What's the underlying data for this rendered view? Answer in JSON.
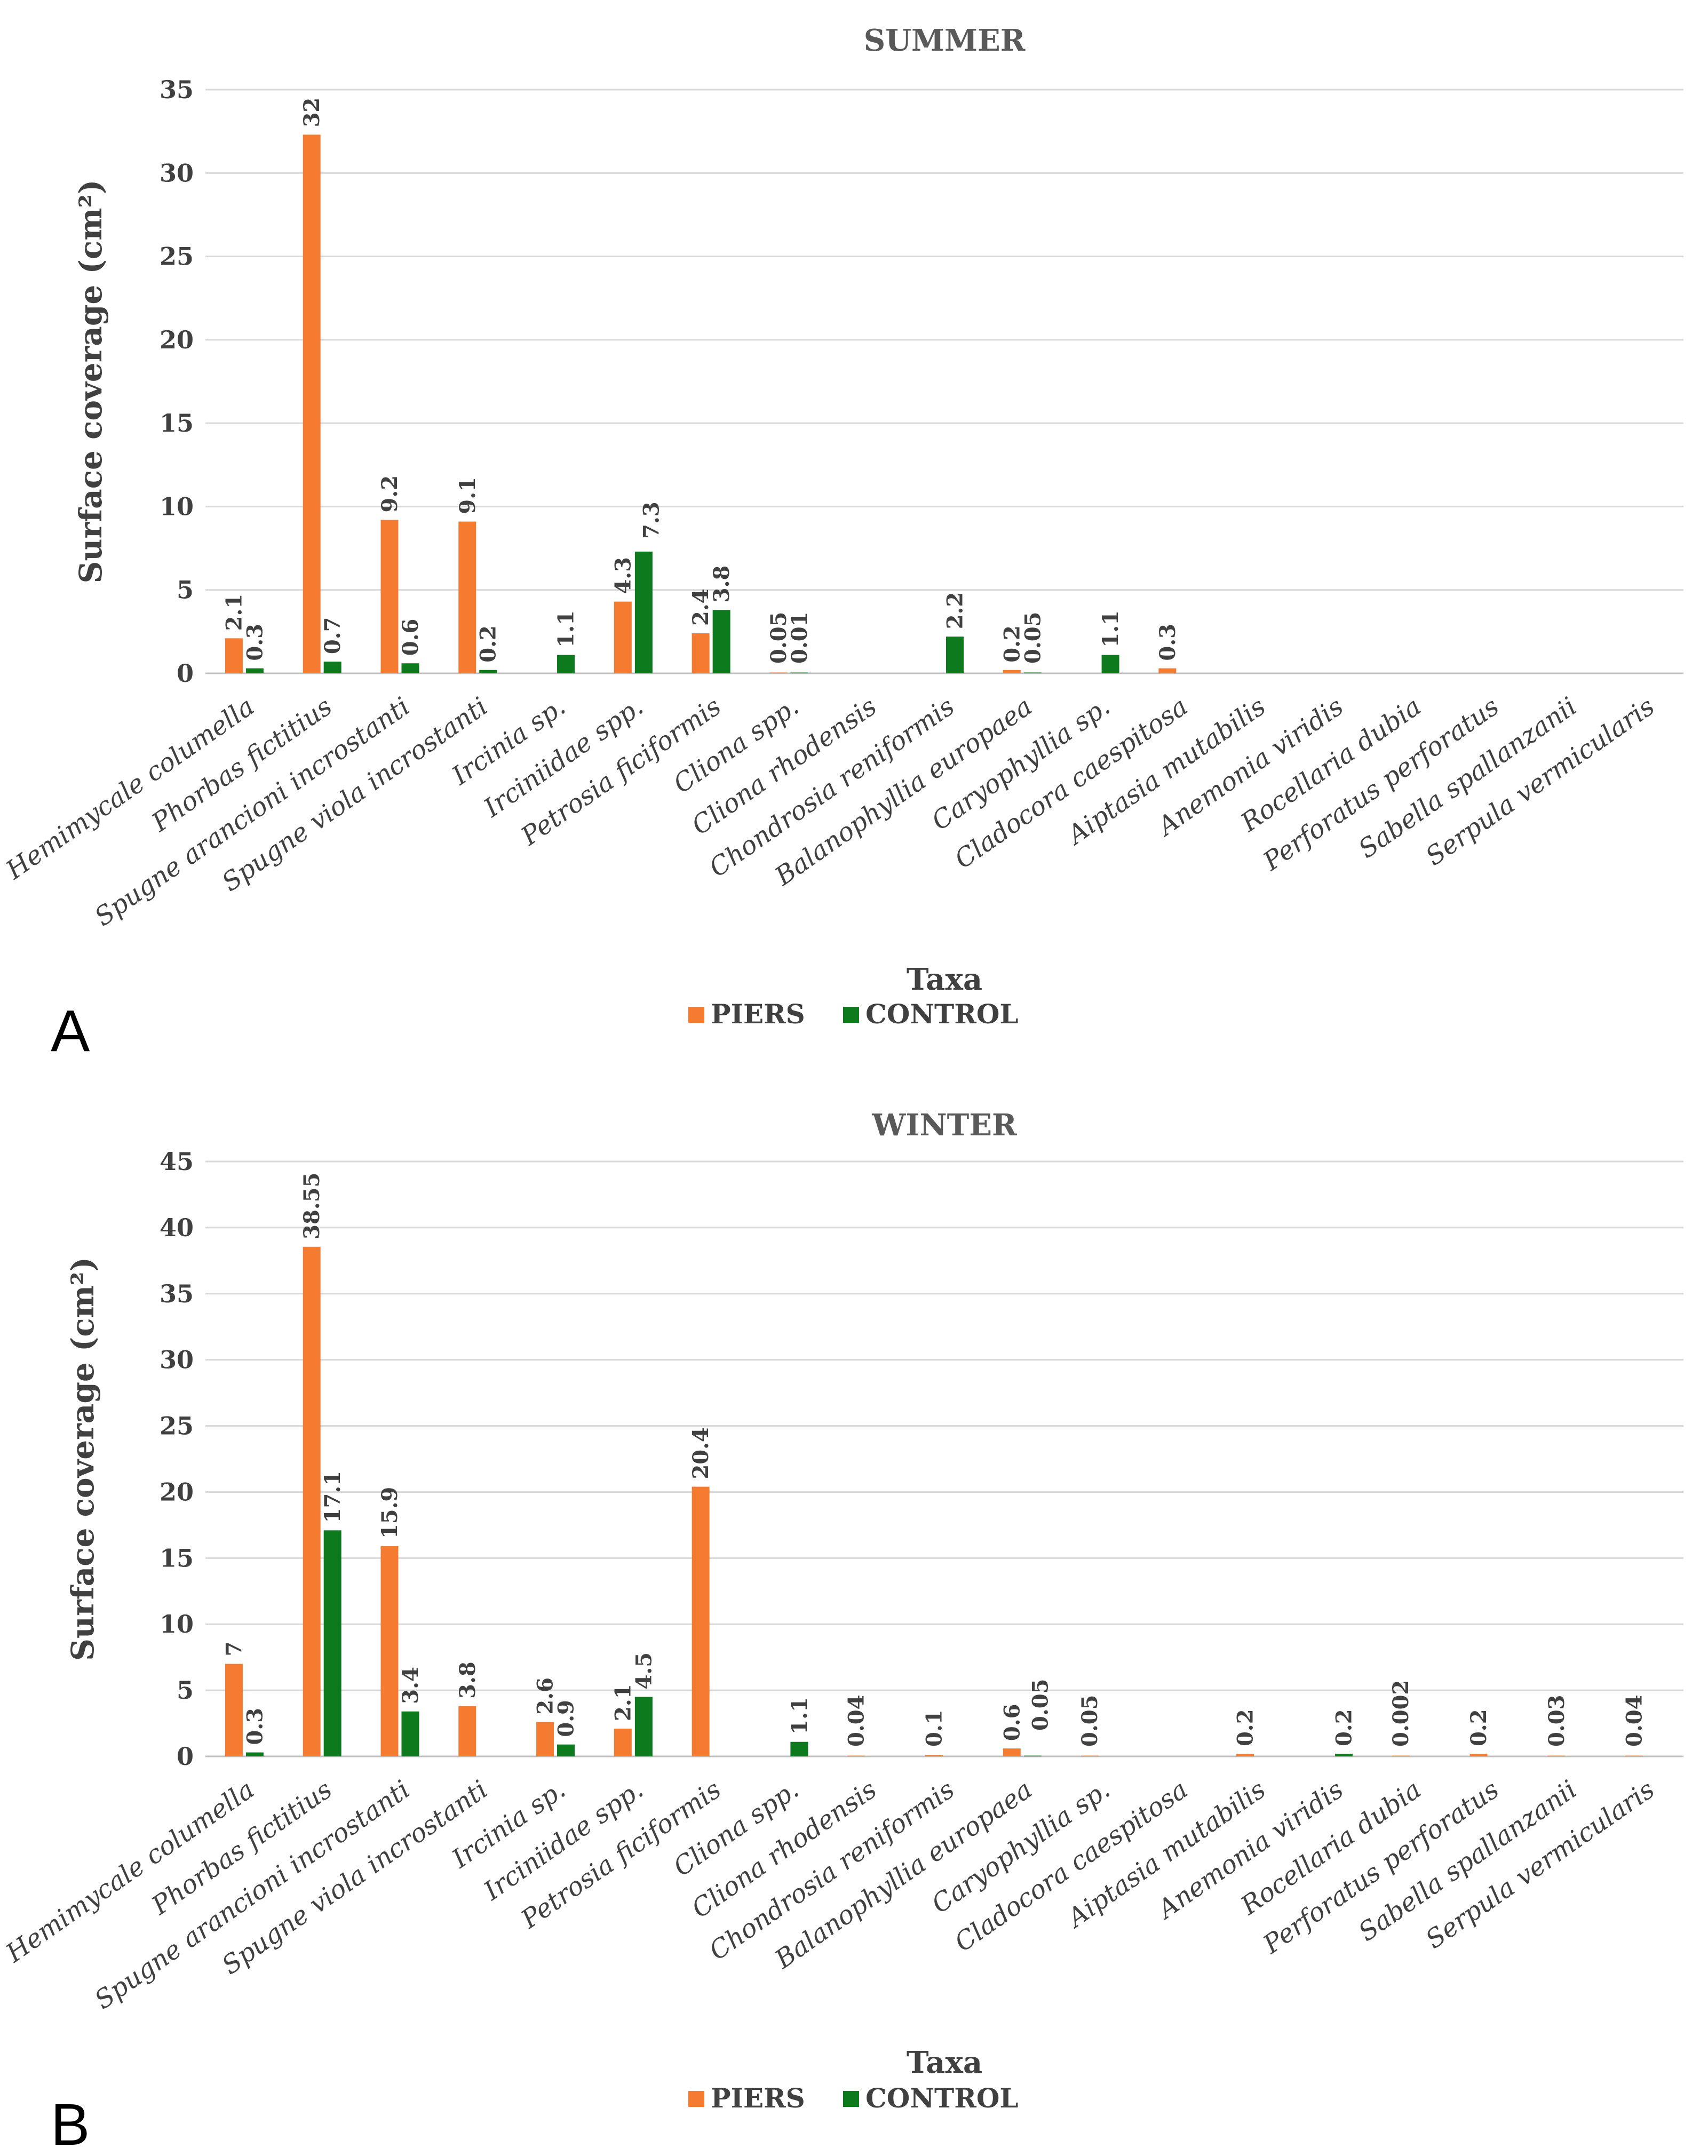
{
  "colors": {
    "piers": "#F47B2F",
    "control": "#0E7A1E"
  },
  "chart_data": [
    {
      "type": "bar",
      "panel_label": "A",
      "title": "SUMMER",
      "xlabel": "Taxa",
      "ylabel": "Surface coverage (cm²)",
      "ylim": [
        0,
        35
      ],
      "yticks": [
        "0",
        "5",
        "10",
        "15",
        "20",
        "25",
        "30",
        "35"
      ],
      "categories": [
        "Hemimycale columella",
        "Phorbas fictitius",
        "Spugne arancioni incrostanti",
        "Spugne viola incrostanti",
        "Ircinia sp.",
        "Irciniidae spp.",
        "Petrosia ficiformis",
        "Cliona spp.",
        "Cliona rhodensis",
        "Chondrosia reniformis",
        "Balanophyllia europaea",
        "Caryophyllia sp.",
        "Cladocora caespitosa",
        "Aiptasia mutabilis",
        "Anemonia viridis",
        "Rocellaria dubia",
        "Perforatus perforatus",
        "Sabella spallanzanii",
        "Serpula vermicularis"
      ],
      "series": [
        {
          "name": "PIERS",
          "values": [
            2.1,
            32.3,
            9.2,
            9.1,
            null,
            4.3,
            2.4,
            0.05,
            null,
            null,
            0.2,
            null,
            0.3,
            null,
            null,
            null,
            null,
            null,
            null
          ],
          "labels": [
            "2.1",
            "32",
            "9.2",
            "9.1",
            "",
            "4.3",
            "2.4",
            "0.05",
            "",
            "",
            "0.2",
            "",
            "0.3",
            "",
            "",
            "",
            "",
            "",
            ""
          ]
        },
        {
          "name": "CONTROL",
          "values": [
            0.3,
            0.7,
            0.6,
            0.2,
            1.1,
            7.3,
            3.8,
            0.01,
            null,
            2.2,
            0.05,
            1.1,
            null,
            null,
            null,
            null,
            null,
            null,
            null
          ],
          "labels": [
            "0.3",
            "0.7",
            "0.6",
            "0.2",
            "1.1",
            "7.3",
            "3.8",
            "0.01",
            "",
            "2.2",
            "0.05",
            "1.1",
            "",
            "",
            "",
            "",
            "",
            "",
            ""
          ]
        }
      ],
      "legend": [
        "PIERS",
        "CONTROL"
      ]
    },
    {
      "type": "bar",
      "panel_label": "B",
      "title": "WINTER",
      "xlabel": "Taxa",
      "ylabel": "Surface coverage (cm²)",
      "ylim": [
        0,
        45
      ],
      "yticks": [
        "0",
        "5",
        "10",
        "15",
        "20",
        "25",
        "30",
        "35",
        "40",
        "45"
      ],
      "categories": [
        "Hemimycale columella",
        "Phorbas fictitius",
        "Spugne arancioni incrostanti",
        "Spugne viola incrostanti",
        "Ircinia sp.",
        "Irciniidae spp.",
        "Petrosia ficiformis",
        "Cliona spp.",
        "Cliona rhodensis",
        "Chondrosia reniformis",
        "Balanophyllia europaea",
        "Caryophyllia sp.",
        "Cladocora caespitosa",
        "Aiptasia mutabilis",
        "Anemonia viridis",
        "Rocellaria dubia",
        "Perforatus perforatus",
        "Sabella spallanzanii",
        "Serpula vermicularis"
      ],
      "series": [
        {
          "name": "PIERS",
          "values": [
            7,
            38.55,
            15.9,
            3.8,
            2.6,
            2.1,
            20.4,
            null,
            0.04,
            0.1,
            0.6,
            0.05,
            null,
            0.2,
            null,
            0.002,
            0.2,
            0.03,
            0.04
          ],
          "labels": [
            "7",
            "38.55",
            "15.9",
            "3.8",
            "2.6",
            "2.1",
            "20.4",
            "",
            "0.04",
            "0.1",
            "0.6",
            "0.05",
            "",
            "0.2",
            "",
            "0.002",
            "0.2",
            "0.03",
            "0.04"
          ]
        },
        {
          "name": "CONTROL",
          "values": [
            0.3,
            17.1,
            3.4,
            null,
            0.9,
            4.5,
            null,
            1.1,
            null,
            null,
            0.05,
            null,
            null,
            null,
            0.2,
            null,
            null,
            null,
            null
          ],
          "labels": [
            "0.3",
            "17.1",
            "3.4",
            "",
            "0.9",
            "4.5",
            "",
            "1.1",
            "",
            "",
            "0.05",
            "",
            "",
            "",
            "0.2",
            "",
            "",
            "",
            ""
          ]
        }
      ],
      "legend": [
        "PIERS",
        "CONTROL"
      ]
    }
  ]
}
